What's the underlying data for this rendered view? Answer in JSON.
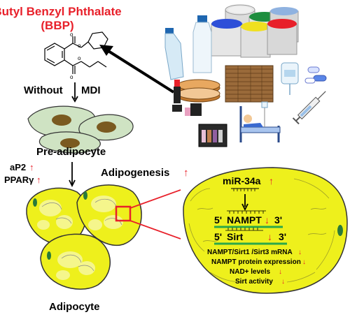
{
  "title": {
    "line1": "Butyl Benzyl Phthalate",
    "line2": "(BBP)"
  },
  "pathway": {
    "without_mdi": "Without",
    "mdi": "MDI",
    "pre_adipocyte": "Pre-adipocyte",
    "adipocyte": "Adipocyte",
    "ap2": "aP2",
    "ppar": "PPARγ",
    "adipogenesis": "Adipogenesis"
  },
  "zoom": {
    "mirna": "miR-34a",
    "nampt_5": "5'",
    "nampt_gene": "NAMPT",
    "nampt_3": "3'",
    "sirt_5": "5'",
    "sirt_gene": "Sirt",
    "sirt_3": "3'",
    "effects": [
      "NAMPT/Sirt1 /Sirt3 mRNA",
      "NAMPT protein expression",
      "NAD+ levels",
      "Sirt  activity"
    ]
  },
  "colors": {
    "title_red": "#e8202a",
    "up_red": "#e8202a",
    "cell_fill": "#eef01c",
    "cell_stroke": "#333333",
    "preadipocyte_fill": "#cfe3c3",
    "nucleus": "#7a5a20",
    "green_bar": "#2aa84a",
    "zoom_red": "#e8202a"
  },
  "icons": [
    "plastic-bottle-icon",
    "paint-cans-icon",
    "wood-flooring-icon",
    "iv-bag-icon",
    "capsules-icon",
    "syringe-icon",
    "cosmetics-icon",
    "eyeshadow-palette-icon",
    "hospital-bed-icon",
    "up-arrow-icon",
    "down-arrow-icon"
  ]
}
